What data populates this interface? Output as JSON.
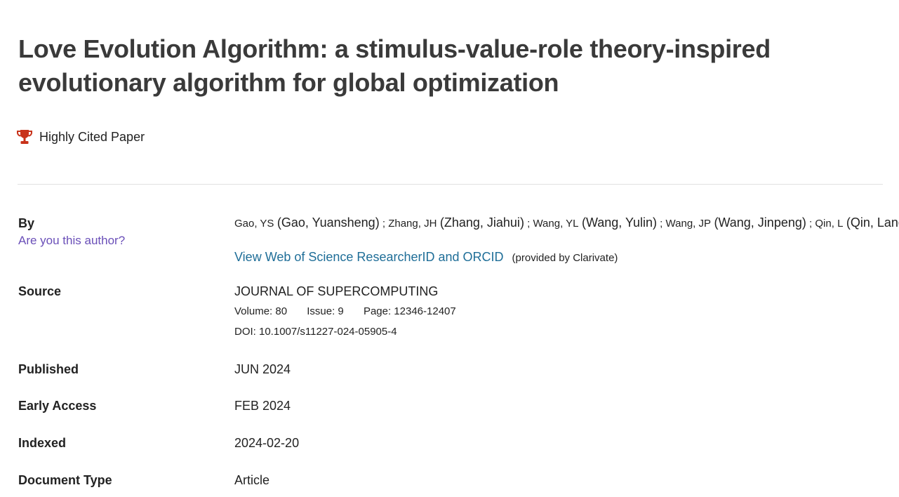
{
  "title": "Love Evolution Algorithm: a stimulus-value-role theory-inspired evolutionary algorithm for global optimization",
  "badge": {
    "icon": "trophy-icon",
    "label": "Highly Cited Paper",
    "color": "#c8321a"
  },
  "by": {
    "label": "By",
    "are_you_author": "Are you this author?",
    "authors": [
      {
        "abbr": "Gao, YS",
        "full": "Gao, Yuansheng"
      },
      {
        "abbr": "Zhang, JH",
        "full": "Zhang, Jiahui"
      },
      {
        "abbr": "Wang, YL",
        "full": "Wang, Yulin"
      },
      {
        "abbr": "Wang, JP",
        "full": "Wang, Jinpeng"
      },
      {
        "abbr": "Qin, L",
        "full": "Qin, Lang"
      }
    ],
    "researcher_link": "View Web of Science ResearcherID and ORCID",
    "provided_by": "(provided by Clarivate)"
  },
  "source": {
    "label": "Source",
    "journal": "JOURNAL OF SUPERCOMPUTING",
    "volume": "Volume: 80",
    "issue": "Issue: 9",
    "page": "Page: 12346-12407",
    "doi": "DOI: 10.1007/s11227-024-05905-4"
  },
  "published": {
    "label": "Published",
    "value": "JUN 2024"
  },
  "early_access": {
    "label": "Early Access",
    "value": "FEB 2024"
  },
  "indexed": {
    "label": "Indexed",
    "value": "2024-02-20"
  },
  "document_type": {
    "label": "Document Type",
    "value": "Article"
  }
}
